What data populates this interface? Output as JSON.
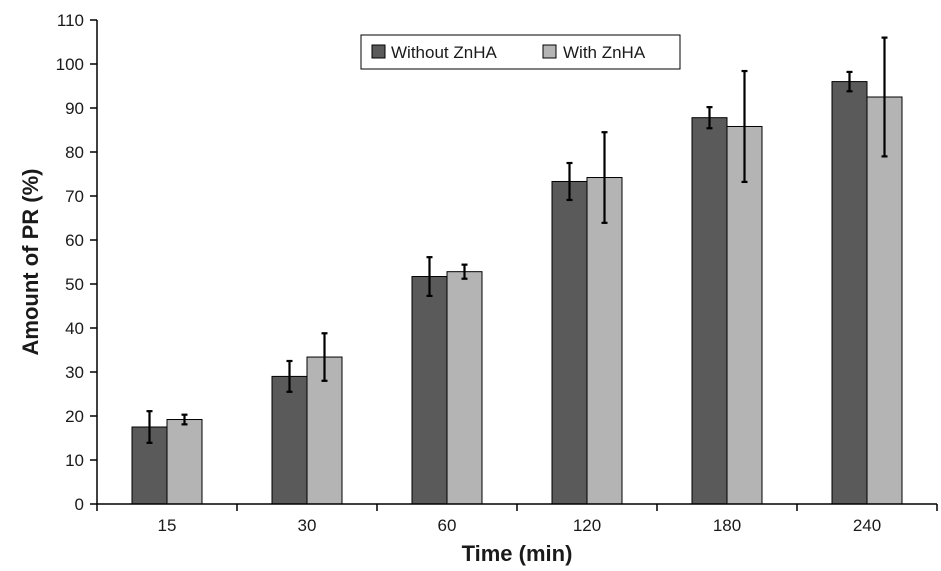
{
  "chart_data": {
    "type": "bar",
    "xlabel": "Time (min)",
    "ylabel": "Amount of PR (%)",
    "categories": [
      "15",
      "30",
      "60",
      "120",
      "180",
      "240"
    ],
    "ylim": [
      0,
      110
    ],
    "yticks": [
      0,
      10,
      20,
      30,
      40,
      50,
      60,
      70,
      80,
      90,
      100,
      110
    ],
    "grid": false,
    "legend_position": "top-center",
    "series": [
      {
        "name": "Without ZnHA",
        "color": "#5a5a5a",
        "values": [
          17.5,
          29,
          51.7,
          73.3,
          87.8,
          96
        ],
        "error": [
          3.6,
          3.5,
          4.4,
          4.2,
          2.4,
          2.2
        ]
      },
      {
        "name": "With ZnHA",
        "color": "#b4b4b4",
        "values": [
          19.2,
          33.4,
          52.8,
          74.2,
          85.8,
          92.5
        ],
        "error": [
          1.1,
          5.4,
          1.6,
          10.3,
          12.6,
          13.5
        ]
      }
    ]
  }
}
